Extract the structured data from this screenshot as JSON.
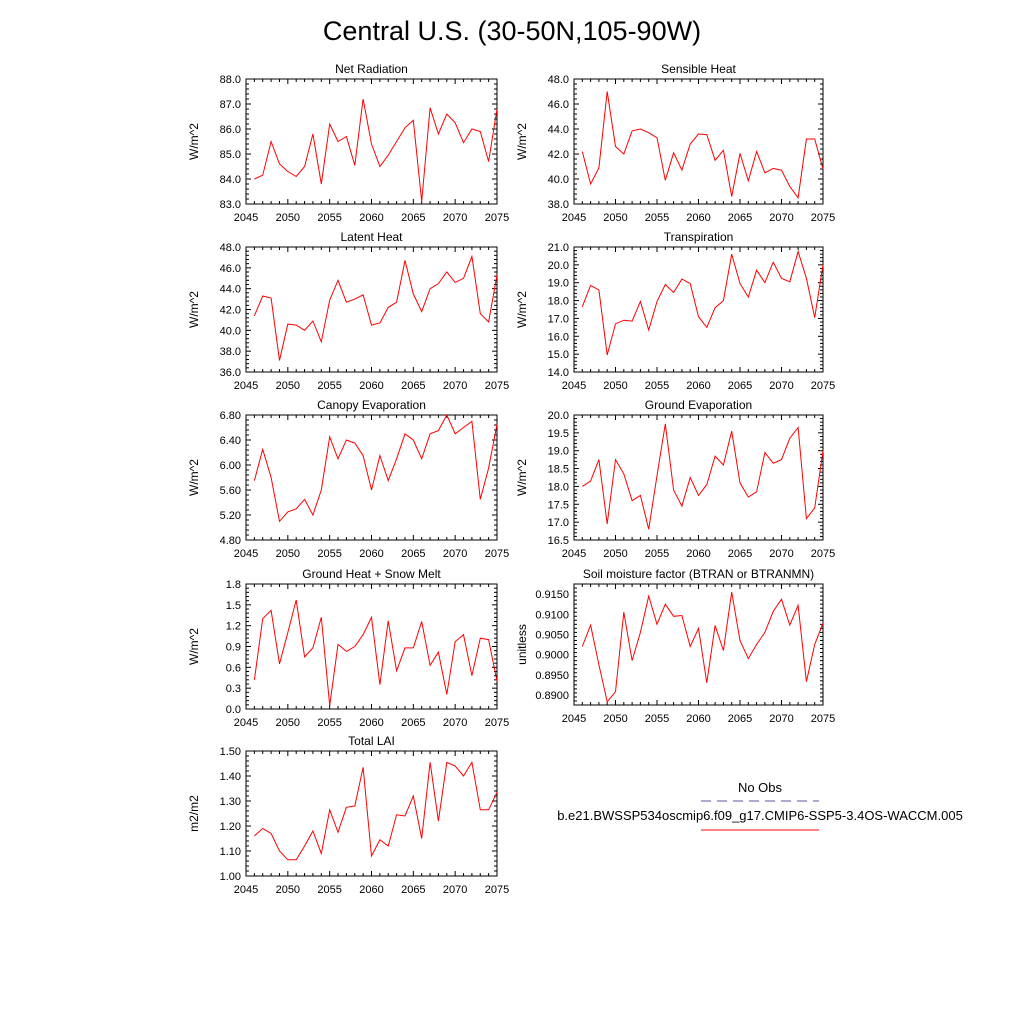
{
  "figure_title": "Central U.S. (30-50N,105-90W)",
  "colors": {
    "series": "#ff0000",
    "obs": "#5555aa",
    "axis": "#000000"
  },
  "legend": {
    "obs_label": "No Obs",
    "case_label": "b.e21.BWSSP534oscmip6.f09_g17.CMIP6-SSP5-3.4OS-WACCM.005"
  },
  "chart_data": [
    {
      "type": "line",
      "title": "Net Radiation",
      "ylabel": "W/m^2",
      "xlim": [
        2045,
        2075
      ],
      "ylim": [
        83,
        88
      ],
      "xticks": [
        "2045",
        "2050",
        "2055",
        "2060",
        "2065",
        "2070",
        "2075"
      ],
      "yticks": [
        "83.0",
        "84.0",
        "85.0",
        "86.0",
        "87.0",
        "88.0"
      ],
      "x_start": 2046,
      "series": [
        {
          "values": [
            84.0,
            84.15,
            85.5,
            84.6,
            84.3,
            84.1,
            84.5,
            85.8,
            83.8,
            86.2,
            85.5,
            85.7,
            84.55,
            87.2,
            85.4,
            84.5,
            84.95,
            85.5,
            86.05,
            86.35,
            83.1,
            86.85,
            85.8,
            86.6,
            86.25,
            85.45,
            86.0,
            85.9,
            84.7,
            86.8
          ]
        }
      ]
    },
    {
      "type": "line",
      "title": "Sensible Heat",
      "ylabel": "W/m^2",
      "xlim": [
        2045,
        2075
      ],
      "ylim": [
        38,
        48
      ],
      "xticks": [
        "2045",
        "2050",
        "2055",
        "2060",
        "2065",
        "2070",
        "2075"
      ],
      "yticks": [
        "38.0",
        "40.0",
        "42.0",
        "44.0",
        "46.0",
        "48.0"
      ],
      "x_start": 2046,
      "series": [
        {
          "values": [
            42.2,
            39.6,
            40.9,
            47.0,
            42.6,
            42.0,
            43.85,
            44.0,
            43.7,
            43.3,
            39.9,
            42.1,
            40.7,
            42.8,
            43.6,
            43.55,
            41.5,
            42.3,
            38.6,
            42.05,
            39.85,
            42.2,
            40.5,
            40.85,
            40.7,
            39.4,
            38.5,
            43.2,
            43.2,
            40.8
          ]
        }
      ]
    },
    {
      "type": "line",
      "title": "Latent Heat",
      "ylabel": "W/m^2",
      "xlim": [
        2045,
        2075
      ],
      "ylim": [
        36,
        48
      ],
      "xticks": [
        "2045",
        "2050",
        "2055",
        "2060",
        "2065",
        "2070",
        "2075"
      ],
      "yticks": [
        "36.0",
        "38.0",
        "40.0",
        "42.0",
        "44.0",
        "46.0",
        "48.0"
      ],
      "x_start": 2046,
      "series": [
        {
          "values": [
            41.4,
            43.3,
            43.1,
            37.1,
            40.6,
            40.5,
            40.0,
            40.9,
            38.9,
            42.9,
            44.8,
            42.7,
            43.0,
            43.4,
            40.5,
            40.7,
            42.2,
            42.7,
            46.7,
            43.5,
            41.8,
            44.0,
            44.5,
            45.6,
            44.6,
            45.0,
            47.1,
            41.6,
            40.8,
            45.3
          ]
        }
      ]
    },
    {
      "type": "line",
      "title": "Transpiration",
      "ylabel": "W/m^2",
      "xlim": [
        2045,
        2075
      ],
      "ylim": [
        14,
        21
      ],
      "xticks": [
        "2045",
        "2050",
        "2055",
        "2060",
        "2065",
        "2070",
        "2075"
      ],
      "yticks": [
        "14.0",
        "15.0",
        "16.0",
        "17.0",
        "18.0",
        "19.0",
        "20.0",
        "21.0"
      ],
      "x_start": 2046,
      "series": [
        {
          "values": [
            17.65,
            18.85,
            18.6,
            14.95,
            16.7,
            16.9,
            16.85,
            17.95,
            16.35,
            17.95,
            18.9,
            18.45,
            19.2,
            18.95,
            17.1,
            16.5,
            17.6,
            18.0,
            20.6,
            18.95,
            18.2,
            19.7,
            19.0,
            20.15,
            19.25,
            19.05,
            20.75,
            19.25,
            17.05,
            20.0
          ]
        }
      ]
    },
    {
      "type": "line",
      "title": "Canopy Evaporation",
      "ylabel": "W/m^2",
      "xlim": [
        2045,
        2075
      ],
      "ylim": [
        4.8,
        6.8
      ],
      "xticks": [
        "2045",
        "2050",
        "2055",
        "2060",
        "2065",
        "2070",
        "2075"
      ],
      "yticks": [
        "4.80",
        "5.20",
        "5.60",
        "6.00",
        "6.40",
        "6.80"
      ],
      "x_start": 2046,
      "series": [
        {
          "values": [
            5.75,
            6.25,
            5.8,
            5.1,
            5.25,
            5.3,
            5.45,
            5.2,
            5.6,
            6.45,
            6.1,
            6.4,
            6.35,
            6.15,
            5.6,
            6.15,
            5.75,
            6.1,
            6.5,
            6.4,
            6.1,
            6.5,
            6.55,
            6.8,
            6.5,
            6.6,
            6.7,
            5.45,
            5.95,
            6.65
          ]
        }
      ]
    },
    {
      "type": "line",
      "title": "Ground Evaporation",
      "ylabel": "W/m^2",
      "xlim": [
        2045,
        2075
      ],
      "ylim": [
        16.5,
        20
      ],
      "xticks": [
        "2045",
        "2050",
        "2055",
        "2060",
        "2065",
        "2070",
        "2075"
      ],
      "yticks": [
        "16.5",
        "17.0",
        "17.5",
        "18.0",
        "18.5",
        "19.0",
        "19.5",
        "20.0"
      ],
      "x_start": 2046,
      "series": [
        {
          "values": [
            18.0,
            18.15,
            18.75,
            16.95,
            18.75,
            18.35,
            17.6,
            17.75,
            16.8,
            18.3,
            19.75,
            17.9,
            17.45,
            18.25,
            17.75,
            18.05,
            18.85,
            18.6,
            19.55,
            18.1,
            17.7,
            17.85,
            18.95,
            18.65,
            18.75,
            19.35,
            19.65,
            17.1,
            17.4,
            19.0
          ]
        }
      ]
    },
    {
      "type": "line",
      "title": "Ground Heat + Snow Melt",
      "ylabel": "W/m^2",
      "xlim": [
        2045,
        2075
      ],
      "ylim": [
        0,
        1.8
      ],
      "xticks": [
        "2045",
        "2050",
        "2055",
        "2060",
        "2065",
        "2070",
        "2075"
      ],
      "yticks": [
        "0.0",
        "0.3",
        "0.6",
        "0.9",
        "1.2",
        "1.5",
        "1.8"
      ],
      "x_start": 2046,
      "series": [
        {
          "values": [
            0.42,
            1.3,
            1.42,
            0.65,
            1.1,
            1.57,
            0.75,
            0.88,
            1.32,
            0.05,
            0.93,
            0.83,
            0.9,
            1.07,
            1.32,
            0.35,
            1.27,
            0.55,
            0.88,
            0.88,
            1.26,
            0.63,
            0.82,
            0.21,
            0.97,
            1.07,
            0.48,
            1.02,
            1.0,
            0.4
          ]
        }
      ]
    },
    {
      "type": "line",
      "title": "Soil moisture factor (BTRAN or BTRANMN)",
      "ylabel": "unitless",
      "xlim": [
        2045,
        2075
      ],
      "ylim": [
        0.8875,
        0.9175
      ],
      "xticks": [
        "2045",
        "2050",
        "2055",
        "2060",
        "2065",
        "2070",
        "2075"
      ],
      "yticks": [
        "0.8900",
        "0.8950",
        "0.9000",
        "0.9050",
        "0.9100",
        "0.9150"
      ],
      "x_start": 2046,
      "series": [
        {
          "values": [
            0.902,
            0.9073,
            0.8975,
            0.8883,
            0.8908,
            0.9105,
            0.8985,
            0.9055,
            0.9145,
            0.9075,
            0.9125,
            0.9095,
            0.9097,
            0.902,
            0.9065,
            0.893,
            0.9072,
            0.901,
            0.9155,
            0.9035,
            0.899,
            0.9025,
            0.9055,
            0.9107,
            0.9137,
            0.9073,
            0.9122,
            0.8933,
            0.9025,
            0.9078
          ]
        }
      ]
    },
    {
      "type": "line",
      "title": "Total LAI",
      "ylabel": "m2/m2",
      "xlim": [
        2045,
        2075
      ],
      "ylim": [
        1.0,
        1.5
      ],
      "xticks": [
        "2045",
        "2050",
        "2055",
        "2060",
        "2065",
        "2070",
        "2075"
      ],
      "yticks": [
        "1.00",
        "1.10",
        "1.20",
        "1.30",
        "1.40",
        "1.50"
      ],
      "x_start": 2046,
      "series": [
        {
          "values": [
            1.16,
            1.19,
            1.17,
            1.1,
            1.065,
            1.065,
            1.12,
            1.18,
            1.09,
            1.265,
            1.175,
            1.275,
            1.28,
            1.435,
            1.08,
            1.145,
            1.12,
            1.245,
            1.24,
            1.32,
            1.15,
            1.455,
            1.22,
            1.455,
            1.44,
            1.4,
            1.455,
            1.265,
            1.265,
            1.335
          ]
        }
      ]
    }
  ]
}
